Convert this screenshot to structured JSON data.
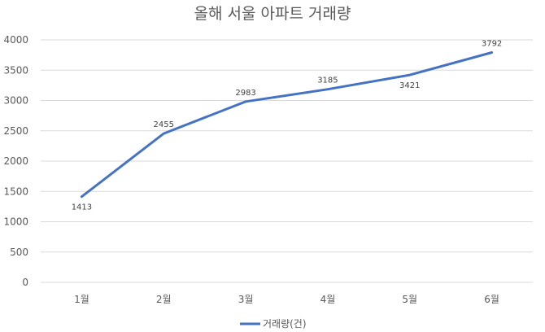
{
  "chart_data": {
    "type": "line",
    "title": "올해 서울 아파트 거래량",
    "categories": [
      "1월",
      "2월",
      "3월",
      "4월",
      "5월",
      "6월"
    ],
    "series": [
      {
        "name": "거래량(건)",
        "values": [
          1413,
          2455,
          2983,
          3185,
          3421,
          3792
        ],
        "color": "#4472c4"
      }
    ],
    "data_labels": [
      "1413",
      "2455",
      "2983",
      "3185",
      "3421",
      "3792"
    ],
    "y_ticks": [
      "0",
      "500",
      "1000",
      "1500",
      "2000",
      "2500",
      "3000",
      "3500",
      "4000"
    ],
    "ylim": [
      0,
      4000
    ],
    "xlabel": "",
    "ylabel": "",
    "grid": true,
    "legend_position": "bottom"
  }
}
